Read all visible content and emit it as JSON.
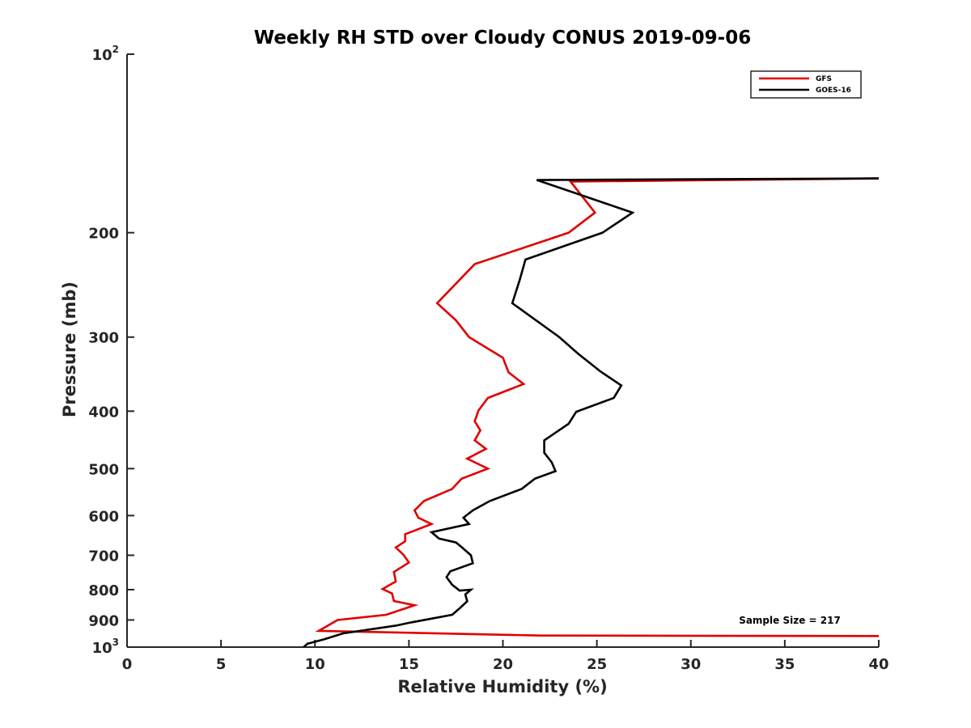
{
  "chart_data": {
    "type": "line",
    "title": "Weekly RH STD over Cloudy CONUS 2019-09-06",
    "xlabel": "Relative Humidity (%)",
    "ylabel": "Pressure (mb)",
    "xlim": [
      0,
      40
    ],
    "ylim": [
      100,
      1000
    ],
    "yscale": "log",
    "yreversed": true,
    "grid": false,
    "legend_location": "top-right",
    "x_ticks": [
      "0",
      "5",
      "10",
      "15",
      "20",
      "25",
      "30",
      "35",
      "40"
    ],
    "y_ticks": [
      {
        "value": 100,
        "base": "10",
        "exp": "2"
      },
      {
        "value": 200,
        "label": "200"
      },
      {
        "value": 300,
        "label": "300"
      },
      {
        "value": 400,
        "label": "400"
      },
      {
        "value": 500,
        "label": "500"
      },
      {
        "value": 600,
        "label": "600"
      },
      {
        "value": 700,
        "label": "700"
      },
      {
        "value": 800,
        "label": "800"
      },
      {
        "value": 900,
        "label": "900"
      },
      {
        "value": 1000,
        "base": "10",
        "exp": "3"
      }
    ],
    "annotation": "Sample Size = 217",
    "series": [
      {
        "name": "GFS",
        "color": "#e00000",
        "points": [
          [
            40,
            958
          ],
          [
            22,
            956
          ],
          [
            10.2,
            939
          ],
          [
            11.2,
            900
          ],
          [
            13.8,
            882
          ],
          [
            15.3,
            850
          ],
          [
            14.2,
            836
          ],
          [
            14.1,
            812
          ],
          [
            13.6,
            798
          ],
          [
            14.3,
            775
          ],
          [
            14.2,
            747
          ],
          [
            15.0,
            720
          ],
          [
            14.7,
            698
          ],
          [
            14.3,
            679
          ],
          [
            14.8,
            663
          ],
          [
            14.8,
            645
          ],
          [
            16.2,
            620
          ],
          [
            15.5,
            605
          ],
          [
            15.3,
            588
          ],
          [
            15.8,
            567
          ],
          [
            17.3,
            541
          ],
          [
            17.8,
            520
          ],
          [
            19.2,
            500
          ],
          [
            18.1,
            481
          ],
          [
            19.1,
            463
          ],
          [
            18.5,
            448
          ],
          [
            18.8,
            431
          ],
          [
            18.5,
            416
          ],
          [
            18.7,
            399
          ],
          [
            19.2,
            380
          ],
          [
            21.1,
            360
          ],
          [
            20.3,
            344
          ],
          [
            20.0,
            325
          ],
          [
            18.2,
            300
          ],
          [
            17.5,
            281
          ],
          [
            16.5,
            263
          ],
          [
            18.5,
            226
          ],
          [
            23.5,
            200
          ],
          [
            24.9,
            185
          ],
          [
            23.6,
            164
          ],
          [
            40,
            162
          ]
        ]
      },
      {
        "name": "GOES-16",
        "color": "#000000",
        "points": [
          [
            9.4,
            1000
          ],
          [
            9.6,
            987
          ],
          [
            10.5,
            970
          ],
          [
            11.5,
            948
          ],
          [
            14.3,
            920
          ],
          [
            15.0,
            910
          ],
          [
            17.3,
            882
          ],
          [
            17.7,
            860
          ],
          [
            18.1,
            837
          ],
          [
            18.0,
            815
          ],
          [
            18.3,
            800
          ],
          [
            17.7,
            803
          ],
          [
            17.3,
            785
          ],
          [
            17.0,
            762
          ],
          [
            17.2,
            745
          ],
          [
            18.4,
            722
          ],
          [
            18.3,
            700
          ],
          [
            17.8,
            678
          ],
          [
            17.5,
            666
          ],
          [
            16.6,
            656
          ],
          [
            16.2,
            640
          ],
          [
            18.2,
            620
          ],
          [
            17.9,
            605
          ],
          [
            18.4,
            588
          ],
          [
            19.3,
            567
          ],
          [
            21.0,
            541
          ],
          [
            21.7,
            520
          ],
          [
            22.8,
            505
          ],
          [
            22.6,
            488
          ],
          [
            22.2,
            470
          ],
          [
            22.2,
            448
          ],
          [
            23.5,
            420
          ],
          [
            23.9,
            401
          ],
          [
            25.9,
            380
          ],
          [
            26.3,
            362
          ],
          [
            25.2,
            343
          ],
          [
            24.0,
            320
          ],
          [
            23.0,
            300
          ],
          [
            20.5,
            263
          ],
          [
            20.9,
            240
          ],
          [
            21.2,
            222
          ],
          [
            25.3,
            200
          ],
          [
            26.9,
            185
          ],
          [
            21.8,
            163
          ],
          [
            40,
            162
          ]
        ]
      }
    ]
  }
}
